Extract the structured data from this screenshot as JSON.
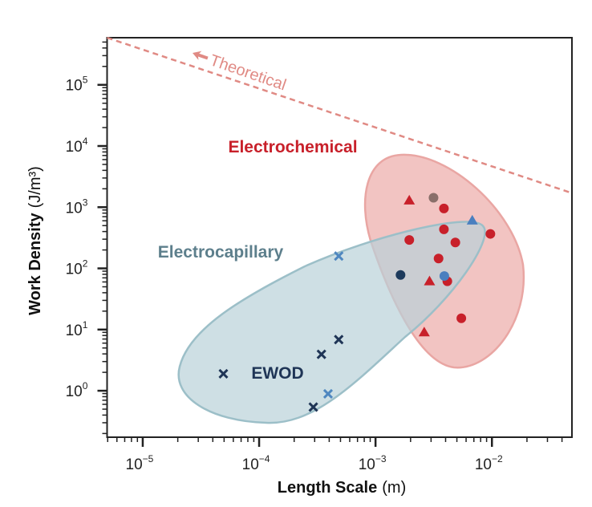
{
  "chart_data": {
    "type": "scatter",
    "xlabel": {
      "bold": "Length Scale",
      "unit": "(m)"
    },
    "ylabel": {
      "bold": "Work Density",
      "unit": "(J/m³)"
    },
    "xscale": "log",
    "yscale": "log",
    "xlim": [
      4.94e-06,
      0.0487
    ],
    "ylim": [
      0.174,
      589000
    ],
    "grid": false,
    "x_ticks": [
      {
        "base": "10",
        "exp": "−5",
        "value": 1e-05
      },
      {
        "base": "10",
        "exp": "−4",
        "value": 0.0001
      },
      {
        "base": "10",
        "exp": "−3",
        "value": 0.001
      },
      {
        "base": "10",
        "exp": "−2",
        "value": 0.01
      }
    ],
    "y_ticks": [
      {
        "base": "10",
        "exp": "0",
        "value": 1
      },
      {
        "base": "10",
        "exp": "1",
        "value": 10
      },
      {
        "base": "10",
        "exp": "2",
        "value": 100
      },
      {
        "base": "10",
        "exp": "3",
        "value": 1000
      },
      {
        "base": "10",
        "exp": "4",
        "value": 10000
      },
      {
        "base": "10",
        "exp": "5",
        "value": 100000
      }
    ],
    "theoretical_line": {
      "label": "Theoretical",
      "color": "#e08a84",
      "points": [
        [
          4.94e-06,
          589000
        ],
        [
          0.0487,
          1700
        ]
      ]
    },
    "regions": [
      {
        "label": "Electrochemical",
        "color": "#c8202a",
        "fill": "#f2c4c2",
        "stroke": "#e9a6a3"
      },
      {
        "label": "Electrocapillary",
        "color": "#5d7f8c",
        "fill": "#b9d2d9",
        "stroke": "#9cbfc8"
      },
      {
        "label": "EWOD",
        "color": "#1f3556"
      }
    ],
    "series": [
      {
        "marker": "circle",
        "color": "#c8202a",
        "points": [
          [
            0.00387,
            953
          ],
          [
            0.00387,
            434
          ],
          [
            0.0097,
            366
          ],
          [
            0.00195,
            291
          ],
          [
            0.00485,
            265
          ],
          [
            0.00348,
            145
          ],
          [
            0.00414,
            61.5
          ],
          [
            0.00546,
            15.3
          ]
        ]
      },
      {
        "marker": "triangle",
        "color": "#c8202a",
        "points": [
          [
            0.00195,
            1290
          ],
          [
            0.00291,
            61.5
          ],
          [
            0.00262,
            9.0
          ]
        ]
      },
      {
        "marker": "circle",
        "color": "#8a6f6a",
        "points": [
          [
            0.00315,
            1425
          ]
        ]
      },
      {
        "marker": "triangle",
        "color": "#4a7fbf",
        "points": [
          [
            0.00678,
            606
          ]
        ]
      },
      {
        "marker": "circle",
        "color": "#1d3a5c",
        "points": [
          [
            0.00164,
            78
          ]
        ]
      },
      {
        "marker": "circle",
        "color": "#4a7fbf",
        "points": [
          [
            0.0039,
            75
          ]
        ]
      },
      {
        "marker": "cross",
        "color": "#4f87c0",
        "points": [
          [
            0.000483,
            159
          ],
          [
            0.000391,
            0.89
          ]
        ]
      },
      {
        "marker": "cross",
        "color": "#1f3556",
        "points": [
          [
            0.000483,
            6.86
          ],
          [
            0.000343,
            3.93
          ],
          [
            4.93e-05,
            1.89
          ],
          [
            0.000292,
            0.54
          ]
        ]
      }
    ]
  }
}
